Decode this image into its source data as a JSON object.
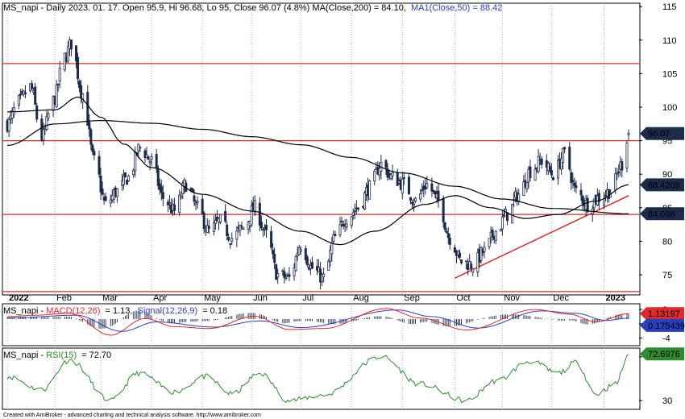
{
  "header": {
    "main_prefix": "MS_napi - Daily 2023. 01. 17. Open 95.9, Hi 96.68, Lo 95, Close 96.07 (4.8%) MA(Close,200) = 84.10,",
    "main_ma1": "MA1(Close,50) = 88.42",
    "macd_prefix": "MS_napi - ",
    "macd_label": "MACD(12,26)",
    "macd_value": "= 1.13,",
    "signal_label": "Signal(12,26,9)",
    "signal_value": "= 0.18",
    "rsi_prefix": "MS_napi - ",
    "rsi_label": "RSI(15)",
    "rsi_value": "= 72.70"
  },
  "footer": "Created with AmiBroker - advanced charting and technical analysis software. http://www.amibroker.com",
  "badges": {
    "price": "96.07",
    "ma50": "88.4208",
    "ma200": "84.098",
    "macd": "1.13197",
    "signal": "0.175439",
    "rsi": "72.6976"
  },
  "colors": {
    "candle": "#1c2b4a",
    "ma": "#000000",
    "sr_line": "#e0292b",
    "macd": "#e0292b",
    "signal": "#2a3fbf",
    "rsi": "#2e8b2e",
    "badge_dark": "#1c2b4a",
    "badge_red": "#e0292b",
    "badge_blue": "#2a3fbf",
    "badge_green": "#2e8b2e"
  },
  "chart_data": [
    {
      "type": "candlestick",
      "x_ticks": [
        "2022",
        "Feb",
        "Mar",
        "Apr",
        "May",
        "Jun",
        "Jul",
        "Aug",
        "Sep",
        "Oct",
        "Nov",
        "Dec",
        "2023"
      ],
      "y_ticks": [
        75,
        80,
        85,
        90,
        95,
        100,
        105,
        110,
        115
      ],
      "ylim": [
        72,
        115.5
      ],
      "horizontal_lines": [
        106.5,
        95.0,
        84.0,
        72.5
      ],
      "trendline": {
        "from": [
          "2022-10-03",
          74.5
        ],
        "to": [
          "2023-01-17",
          86.8
        ]
      },
      "last": {
        "open": 95.9,
        "high": 96.68,
        "low": 95,
        "close": 96.07
      },
      "close_anchors": [
        [
          "2022-01-03",
          97.5
        ],
        [
          "2022-01-10",
          100.8
        ],
        [
          "2022-01-17",
          103.0
        ],
        [
          "2022-01-24",
          95.5
        ],
        [
          "2022-01-31",
          101.0
        ],
        [
          "2022-02-07",
          107.5
        ],
        [
          "2022-02-11",
          109.5
        ],
        [
          "2022-02-18",
          102.0
        ],
        [
          "2022-02-25",
          92.0
        ],
        [
          "2022-03-04",
          85.5
        ],
        [
          "2022-03-11",
          87.5
        ],
        [
          "2022-03-18",
          89.5
        ],
        [
          "2022-03-25",
          94.0
        ],
        [
          "2022-04-01",
          92.0
        ],
        [
          "2022-04-08",
          86.5
        ],
        [
          "2022-04-15",
          84.5
        ],
        [
          "2022-04-22",
          88.5
        ],
        [
          "2022-04-29",
          85.0
        ],
        [
          "2022-05-06",
          81.5
        ],
        [
          "2022-05-13",
          83.0
        ],
        [
          "2022-05-20",
          80.5
        ],
        [
          "2022-05-27",
          82.0
        ],
        [
          "2022-06-03",
          85.0
        ],
        [
          "2022-06-10",
          81.0
        ],
        [
          "2022-06-17",
          75.0
        ],
        [
          "2022-06-24",
          74.5
        ],
        [
          "2022-07-01",
          79.5
        ],
        [
          "2022-07-08",
          76.0
        ],
        [
          "2022-07-15",
          74.5
        ],
        [
          "2022-07-22",
          80.5
        ],
        [
          "2022-07-29",
          83.5
        ],
        [
          "2022-08-05",
          85.0
        ],
        [
          "2022-08-12",
          88.0
        ],
        [
          "2022-08-19",
          91.5
        ],
        [
          "2022-08-26",
          89.5
        ],
        [
          "2022-09-02",
          88.5
        ],
        [
          "2022-09-09",
          86.0
        ],
        [
          "2022-09-16",
          88.5
        ],
        [
          "2022-09-23",
          86.0
        ],
        [
          "2022-09-30",
          80.5
        ],
        [
          "2022-10-07",
          77.0
        ],
        [
          "2022-10-14",
          76.5
        ],
        [
          "2022-10-21",
          78.5
        ],
        [
          "2022-10-28",
          81.5
        ],
        [
          "2022-11-04",
          84.0
        ],
        [
          "2022-11-11",
          87.0
        ],
        [
          "2022-11-18",
          90.5
        ],
        [
          "2022-11-25",
          92.0
        ],
        [
          "2022-12-02",
          90.0
        ],
        [
          "2022-12-09",
          93.0
        ],
        [
          "2022-12-16",
          87.5
        ],
        [
          "2022-12-23",
          85.5
        ],
        [
          "2022-12-30",
          86.5
        ],
        [
          "2023-01-06",
          87.5
        ],
        [
          "2023-01-13",
          91.5
        ],
        [
          "2023-01-17",
          96.07
        ]
      ],
      "ma200_anchors": [
        [
          "2022-01-03",
          94.3
        ],
        [
          "2022-02-01",
          97.5
        ],
        [
          "2022-03-01",
          98.0
        ],
        [
          "2022-04-01",
          97.6
        ],
        [
          "2022-05-02",
          96.7
        ],
        [
          "2022-06-01",
          95.6
        ],
        [
          "2022-07-01",
          94.4
        ],
        [
          "2022-08-01",
          92.5
        ],
        [
          "2022-09-01",
          90.2
        ],
        [
          "2022-10-03",
          88.2
        ],
        [
          "2022-11-01",
          86.3
        ],
        [
          "2022-12-01",
          84.9
        ],
        [
          "2023-01-17",
          84.1
        ]
      ],
      "ma50_anchors": [
        [
          "2022-01-03",
          99.3
        ],
        [
          "2022-02-01",
          99.6
        ],
        [
          "2022-02-15",
          101.5
        ],
        [
          "2022-03-01",
          98.5
        ],
        [
          "2022-03-15",
          94.5
        ],
        [
          "2022-04-01",
          91.0
        ],
        [
          "2022-05-02",
          87.0
        ],
        [
          "2022-06-01",
          84.5
        ],
        [
          "2022-07-01",
          81.5
        ],
        [
          "2022-07-25",
          79.5
        ],
        [
          "2022-08-15",
          81.5
        ],
        [
          "2022-09-15",
          85.5
        ],
        [
          "2022-10-03",
          86.8
        ],
        [
          "2022-10-25",
          85.0
        ],
        [
          "2022-11-15",
          83.4
        ],
        [
          "2022-12-05",
          84.0
        ],
        [
          "2022-12-28",
          86.0
        ],
        [
          "2023-01-17",
          88.42
        ]
      ]
    },
    {
      "type": "line",
      "name": "MACD",
      "y_ticks": [
        2,
        -1,
        -4
      ],
      "ylim": [
        -5.6,
        3.2
      ],
      "series": [
        {
          "name": "MACD(12,26)",
          "anchors": [
            [
              "2022-01-03",
              0.5
            ],
            [
              "2022-01-20",
              0.8
            ],
            [
              "2022-02-10",
              1.2
            ],
            [
              "2022-03-07",
              -3.4
            ],
            [
              "2022-03-28",
              0.1
            ],
            [
              "2022-04-15",
              -1.6
            ],
            [
              "2022-05-06",
              -2.0
            ],
            [
              "2022-06-03",
              0.6
            ],
            [
              "2022-06-24",
              -2.2
            ],
            [
              "2022-07-15",
              -2.0
            ],
            [
              "2022-08-22",
              2.2
            ],
            [
              "2022-09-12",
              0.2
            ],
            [
              "2022-10-10",
              -2.3
            ],
            [
              "2022-11-21",
              2.0
            ],
            [
              "2022-12-12",
              1.0
            ],
            [
              "2022-12-28",
              -0.6
            ],
            [
              "2023-01-17",
              1.13
            ]
          ]
        },
        {
          "name": "Signal(12,26,9)",
          "anchors": [
            [
              "2022-01-03",
              0.2
            ],
            [
              "2022-02-14",
              0.8
            ],
            [
              "2022-03-14",
              -2.6
            ],
            [
              "2022-04-04",
              -0.6
            ],
            [
              "2022-05-09",
              -1.7
            ],
            [
              "2022-06-06",
              -0.4
            ],
            [
              "2022-07-01",
              -1.8
            ],
            [
              "2022-08-29",
              1.9
            ],
            [
              "2022-09-19",
              0.5
            ],
            [
              "2022-10-17",
              -1.9
            ],
            [
              "2022-11-25",
              1.7
            ],
            [
              "2022-12-16",
              1.2
            ],
            [
              "2023-01-03",
              -0.3
            ],
            [
              "2023-01-17",
              0.18
            ]
          ]
        }
      ]
    },
    {
      "type": "line",
      "name": "RSI",
      "y_ticks": [
        70,
        30
      ],
      "ylim": [
        22,
        78
      ],
      "series": [
        {
          "name": "RSI(15)",
          "anchors": [
            [
              "2022-01-03",
              52
            ],
            [
              "2022-01-24",
              40
            ],
            [
              "2022-02-10",
              67
            ],
            [
              "2022-03-07",
              30
            ],
            [
              "2022-03-24",
              55
            ],
            [
              "2022-04-15",
              38
            ],
            [
              "2022-05-04",
              52
            ],
            [
              "2022-05-20",
              36
            ],
            [
              "2022-06-06",
              55
            ],
            [
              "2022-06-24",
              30
            ],
            [
              "2022-07-15",
              35
            ],
            [
              "2022-08-19",
              70
            ],
            [
              "2022-09-12",
              45
            ],
            [
              "2022-10-10",
              30
            ],
            [
              "2022-10-28",
              48
            ],
            [
              "2022-11-18",
              66
            ],
            [
              "2022-12-05",
              55
            ],
            [
              "2022-12-16",
              65
            ],
            [
              "2022-12-28",
              36
            ],
            [
              "2023-01-09",
              45
            ],
            [
              "2023-01-17",
              72.7
            ]
          ]
        }
      ]
    }
  ]
}
